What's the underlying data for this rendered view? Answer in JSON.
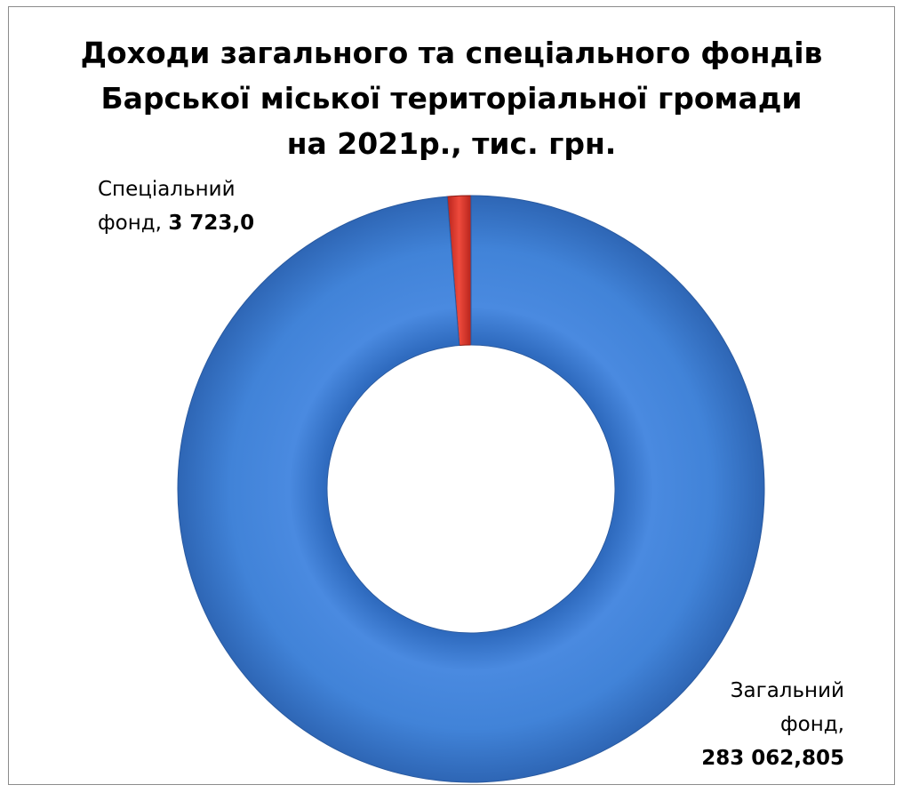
{
  "chart_data": {
    "type": "pie",
    "variant": "doughnut",
    "title": "Доходи загального та спеціального фондів Барської міської територіальної громади на 2021р., тис. грн.",
    "title_lines": [
      "Доходи загального та спеціального фондів",
      "Барської міської територіальної громади",
      "на 2021р., тис. грн."
    ],
    "categories": [
      "Спеціальний фонд",
      "Загальний фонд"
    ],
    "values": [
      3723.0,
      283062.805
    ],
    "colors": [
      "#e0352b",
      "#3f7fd6"
    ],
    "labels": [
      {
        "category_prefix": "Спеціальний",
        "category_suffix": "фонд,",
        "value_text": "3 723,0"
      },
      {
        "category_prefix": "Загальний",
        "category_suffix": "фонд,",
        "value_text": "283 062,805"
      }
    ],
    "legend": "none"
  }
}
